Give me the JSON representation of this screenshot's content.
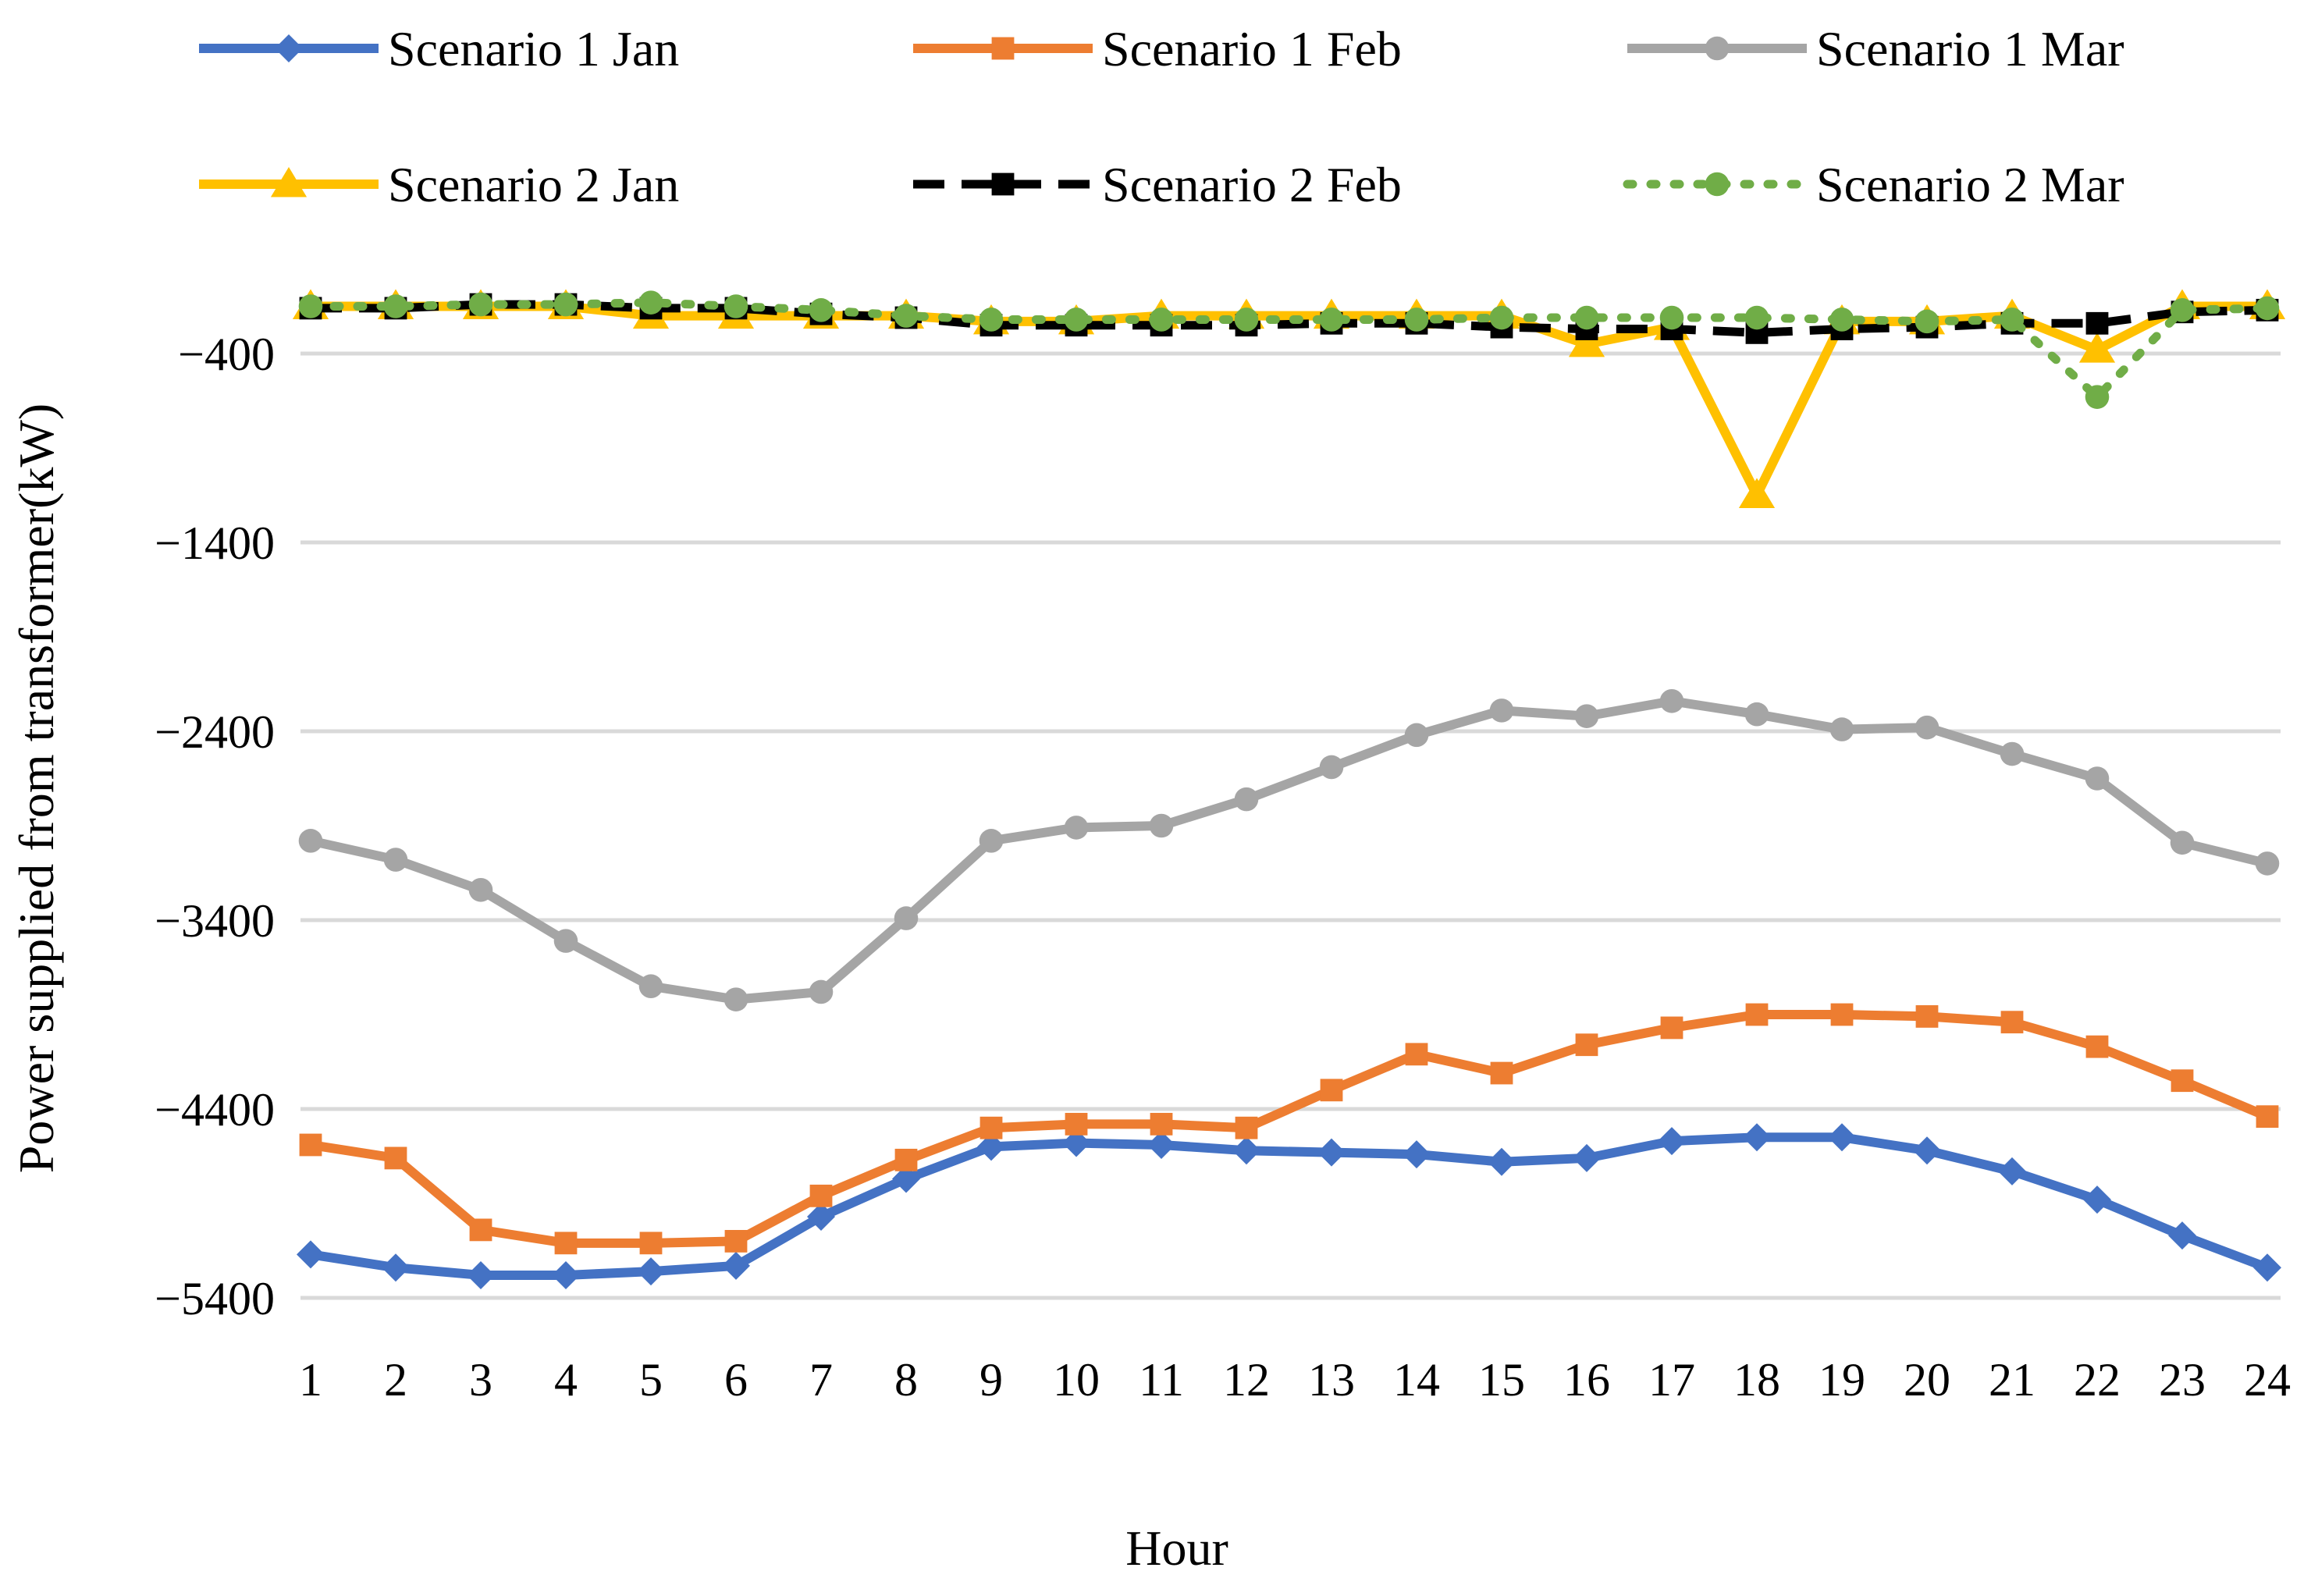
{
  "chart_data": {
    "type": "line",
    "title": "",
    "xlabel": "Hour",
    "ylabel": "Power supplied from transformer(kW)",
    "categories": [
      "1",
      "2",
      "3",
      "4",
      "5",
      "6",
      "7",
      "8",
      "9",
      "10",
      "11",
      "12",
      "13",
      "14",
      "15",
      "16",
      "17",
      "18",
      "19",
      "20",
      "21",
      "22",
      "23",
      "24"
    ],
    "yticks": [
      -400,
      -1400,
      -2400,
      -3400,
      -4400,
      -5400
    ],
    "yticks_display": [
      "−400",
      "−1400",
      "−2400",
      "−3400",
      "−4400",
      "−5400"
    ],
    "ylim": [
      -5400,
      -150
    ],
    "grid": true,
    "legend_position": "top",
    "series": [
      {
        "name": "Scenario 1 Jan",
        "color": "#4472C4",
        "dash": "solid",
        "marker": "diamond",
        "values": [
          -5170,
          -5240,
          -5280,
          -5280,
          -5260,
          -5230,
          -4970,
          -4770,
          -4600,
          -4580,
          -4590,
          -4620,
          -4630,
          -4640,
          -4680,
          -4660,
          -4570,
          -4550,
          -4550,
          -4620,
          -4730,
          -4880,
          -5070,
          -5240
        ]
      },
      {
        "name": "Scenario 1 Feb",
        "color": "#ED7D31",
        "dash": "solid",
        "marker": "square",
        "values": [
          -4590,
          -4660,
          -5040,
          -5110,
          -5110,
          -5100,
          -4860,
          -4670,
          -4500,
          -4480,
          -4480,
          -4500,
          -4300,
          -4110,
          -4210,
          -4060,
          -3970,
          -3900,
          -3900,
          -3910,
          -3940,
          -4070,
          -4250,
          -4440
        ]
      },
      {
        "name": "Scenario 1 Mar",
        "color": "#A5A5A5",
        "dash": "solid",
        "marker": "circle",
        "values": [
          -2980,
          -3080,
          -3240,
          -3510,
          -3750,
          -3820,
          -3780,
          -3390,
          -2980,
          -2910,
          -2900,
          -2760,
          -2590,
          -2420,
          -2290,
          -2320,
          -2240,
          -2310,
          -2390,
          -2380,
          -2520,
          -2650,
          -2990,
          -3100
        ]
      },
      {
        "name": "Scenario 2 Jan",
        "color": "#FFC000",
        "dash": "solid",
        "marker": "triangle",
        "values": [
          -150,
          -150,
          -150,
          -150,
          -200,
          -200,
          -200,
          -200,
          -230,
          -230,
          -200,
          -200,
          -200,
          -200,
          -200,
          -350,
          -260,
          -1150,
          -230,
          -230,
          -200,
          -380,
          -150,
          -150
        ]
      },
      {
        "name": "Scenario 2 Feb",
        "color": "#000000",
        "dash": "dash",
        "marker": "square",
        "values": [
          -160,
          -160,
          -140,
          -140,
          -160,
          -160,
          -190,
          -210,
          -250,
          -250,
          -250,
          -250,
          -240,
          -240,
          -260,
          -270,
          -270,
          -290,
          -270,
          -260,
          -240,
          -240,
          -180,
          -170
        ]
      },
      {
        "name": "Scenario 2 Mar",
        "color": "#70AD47",
        "dash": "dot",
        "marker": "circle",
        "values": [
          -150,
          -150,
          -140,
          -140,
          -130,
          -150,
          -170,
          -200,
          -220,
          -220,
          -220,
          -220,
          -220,
          -220,
          -210,
          -210,
          -210,
          -210,
          -220,
          -230,
          -220,
          -630,
          -170,
          -160
        ]
      }
    ]
  }
}
